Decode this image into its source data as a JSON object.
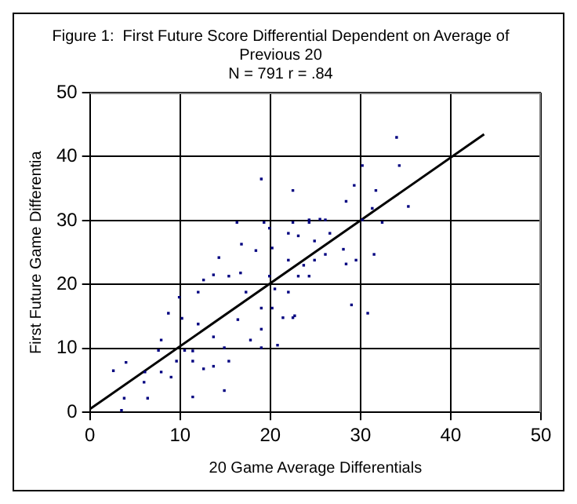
{
  "chart_data": {
    "type": "scatter",
    "title": "Figure 1:  First Future Score Differential Dependent on Average of Previous 20",
    "subtitle": "N = 791 r = .84",
    "xlabel": "20 Game Average Differentials",
    "ylabel": "First Future Game Differentia",
    "xlim": [
      0,
      50
    ],
    "ylim": [
      0,
      50
    ],
    "xticks": [
      0,
      10,
      20,
      30,
      40,
      50
    ],
    "yticks": [
      0,
      10,
      20,
      30,
      40,
      50
    ],
    "grid": true,
    "legend": false,
    "series": [
      {
        "type": "scatter",
        "color": "#000080",
        "marker": "square",
        "x": [
          19.0,
          22.5,
          25.5,
          22.5,
          16.3,
          19.3,
          16.8,
          18.4,
          14.3,
          13.7,
          12.6,
          15.4,
          17.3,
          12.0,
          9.9,
          8.7,
          10.2,
          12.0,
          16.4,
          19.0,
          20.2,
          19.0,
          17.8,
          19.0,
          14.9,
          13.7,
          7.9,
          7.6,
          10.5,
          11.4,
          9.6,
          11.4,
          13.7,
          12.6,
          15.4,
          9.0,
          7.9,
          6.1,
          2.6,
          4.0,
          6.0,
          3.8,
          6.4,
          11.4,
          14.9,
          3.5,
          19.9,
          20.5,
          22.0,
          22.5,
          21.4,
          20.8,
          24.3,
          23.7,
          24.9,
          20.2,
          22.0,
          24.3,
          19.9,
          22.0,
          16.7,
          34.0,
          34.3,
          30.2,
          29.3,
          31.7,
          28.4,
          35.3,
          31.3,
          32.4,
          24.9,
          23.1,
          26.1,
          28.1,
          28.4,
          29.5,
          31.5,
          23.1,
          29.0,
          30.8,
          22.7,
          24.3,
          26.1,
          26.6,
          30.2
        ],
        "values": [
          36.5,
          34.7,
          30.2,
          29.7,
          29.7,
          29.7,
          26.3,
          25.3,
          24.2,
          21.5,
          20.7,
          21.3,
          18.8,
          18.8,
          18.0,
          15.5,
          14.7,
          13.8,
          14.5,
          16.3,
          16.3,
          13.0,
          11.3,
          10.1,
          10.1,
          11.8,
          11.3,
          9.7,
          9.7,
          9.6,
          8.0,
          8.0,
          7.2,
          6.8,
          8.0,
          5.5,
          6.3,
          6.3,
          6.5,
          7.8,
          4.7,
          2.2,
          2.2,
          2.4,
          3.4,
          0.3,
          21.3,
          19.3,
          18.8,
          14.8,
          14.8,
          10.5,
          21.3,
          23.0,
          23.8,
          25.7,
          28.0,
          29.7,
          28.8,
          23.8,
          21.8,
          43.0,
          38.6,
          38.6,
          35.5,
          34.7,
          33.0,
          32.2,
          31.9,
          29.7,
          26.8,
          27.6,
          24.7,
          25.5,
          23.2,
          23.8,
          24.7,
          21.3,
          16.8,
          15.5,
          15.1,
          30.1,
          30.1,
          28.0,
          30.1
        ]
      },
      {
        "type": "line",
        "color": "#000000",
        "marker": "none",
        "x": [
          0,
          43.7
        ],
        "values": [
          0.5,
          43.5
        ]
      }
    ]
  }
}
